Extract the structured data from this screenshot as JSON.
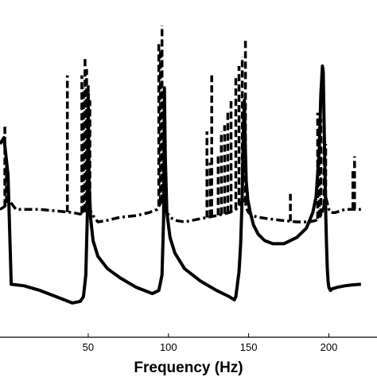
{
  "chart_data": {
    "type": "line",
    "xlabel": "Frequency (Hz)",
    "ylabel": "",
    "title": "",
    "xlim": [
      -5,
      230
    ],
    "ylim": [
      0,
      1
    ],
    "xticks": [
      50,
      100,
      150,
      200
    ],
    "xtick_labels": [
      "50",
      "100",
      "150",
      "200"
    ],
    "grid": false,
    "legend": "none",
    "series": [
      {
        "style": "solid",
        "color": "#000000",
        "x": [
          -5,
          -2.5,
          0,
          2,
          10,
          20,
          30,
          40,
          45,
          47,
          48.5,
          49.5,
          50,
          50.5,
          51.5,
          53,
          56,
          62,
          70,
          80,
          90,
          94,
          96,
          97,
          97.5,
          98,
          99,
          101,
          104,
          110,
          120,
          130,
          138,
          141,
          142,
          143,
          144,
          145,
          146,
          146.8,
          147.3,
          147.8,
          148.5,
          149.5,
          151,
          153,
          156,
          160,
          165,
          172,
          180,
          186,
          190,
          192,
          194,
          195,
          196,
          196.5,
          197,
          197.5,
          198,
          198.5,
          199,
          199.5,
          200,
          201,
          202,
          205,
          210,
          215,
          220
        ],
        "y": [
          0.62,
          0.64,
          0.52,
          0.17,
          0.165,
          0.15,
          0.13,
          0.11,
          0.115,
          0.13,
          0.2,
          0.4,
          0.78,
          0.5,
          0.38,
          0.31,
          0.26,
          0.22,
          0.19,
          0.16,
          0.14,
          0.15,
          0.2,
          0.38,
          0.8,
          0.58,
          0.4,
          0.32,
          0.27,
          0.22,
          0.18,
          0.15,
          0.13,
          0.12,
          0.13,
          0.17,
          0.21,
          0.3,
          0.46,
          0.68,
          0.76,
          0.63,
          0.5,
          0.44,
          0.4,
          0.36,
          0.33,
          0.31,
          0.3,
          0.3,
          0.32,
          0.35,
          0.4,
          0.45,
          0.6,
          0.78,
          0.87,
          0.85,
          0.7,
          0.56,
          0.4,
          0.3,
          0.22,
          0.18,
          0.16,
          0.15,
          0.155,
          0.16,
          0.165,
          0.168,
          0.17
        ]
      },
      {
        "style": "dash-dot",
        "color": "#000000",
        "x": [
          -5,
          -2,
          0,
          2,
          5,
          10,
          20,
          30,
          40,
          45,
          47,
          49,
          50,
          51,
          53,
          56,
          62,
          70,
          80,
          88,
          93,
          95,
          97,
          98,
          99,
          101,
          104,
          110,
          120,
          130,
          138,
          142,
          145,
          147,
          148,
          149,
          150,
          152,
          156,
          162,
          170,
          180,
          188,
          192,
          195,
          197,
          198,
          199,
          200,
          201,
          204,
          210,
          216,
          220
        ],
        "y": [
          0.41,
          0.42,
          0.44,
          0.43,
          0.41,
          0.41,
          0.41,
          0.405,
          0.4,
          0.395,
          0.4,
          0.41,
          0.42,
          0.41,
          0.39,
          0.37,
          0.375,
          0.385,
          0.39,
          0.4,
          0.41,
          0.43,
          0.44,
          0.42,
          0.4,
          0.385,
          0.375,
          0.37,
          0.38,
          0.39,
          0.4,
          0.41,
          0.43,
          0.44,
          0.43,
          0.41,
          0.4,
          0.39,
          0.385,
          0.38,
          0.375,
          0.37,
          0.37,
          0.375,
          0.39,
          0.42,
          0.45,
          0.43,
          0.41,
          0.4,
          0.4,
          0.41,
          0.41,
          0.41
        ]
      },
      {
        "style": "dashed",
        "color": "#000000",
        "spikes": [
          {
            "x": -2,
            "y": 0.68
          },
          {
            "x": -1,
            "y": 0.55
          },
          {
            "x": 0,
            "y": 0.5
          },
          {
            "x": 37,
            "y": 0.84
          },
          {
            "x": 46,
            "y": 0.84
          },
          {
            "x": 47,
            "y": 0.8
          },
          {
            "x": 48,
            "y": 0.9
          },
          {
            "x": 49,
            "y": 0.86
          },
          {
            "x": 50,
            "y": 0.81
          },
          {
            "x": 51,
            "y": 0.76
          },
          {
            "x": 94,
            "y": 0.94
          },
          {
            "x": 95,
            "y": 0.92
          },
          {
            "x": 96,
            "y": 1.0
          },
          {
            "x": 124,
            "y": 0.66
          },
          {
            "x": 126,
            "y": 0.56
          },
          {
            "x": 127,
            "y": 0.84
          },
          {
            "x": 131,
            "y": 0.58
          },
          {
            "x": 133,
            "y": 0.66
          },
          {
            "x": 135,
            "y": 0.68
          },
          {
            "x": 137,
            "y": 0.72
          },
          {
            "x": 139,
            "y": 0.76
          },
          {
            "x": 142,
            "y": 0.84
          },
          {
            "x": 144,
            "y": 0.87
          },
          {
            "x": 146,
            "y": 0.9
          },
          {
            "x": 148,
            "y": 0.96
          },
          {
            "x": 176,
            "y": 0.46
          },
          {
            "x": 193,
            "y": 0.72
          },
          {
            "x": 194,
            "y": 0.7
          },
          {
            "x": 195,
            "y": 0.7
          },
          {
            "x": 197,
            "y": 0.66
          },
          {
            "x": 198,
            "y": 0.62
          },
          {
            "x": 215,
            "y": 0.54
          },
          {
            "x": 216,
            "y": 0.58
          }
        ]
      }
    ]
  }
}
